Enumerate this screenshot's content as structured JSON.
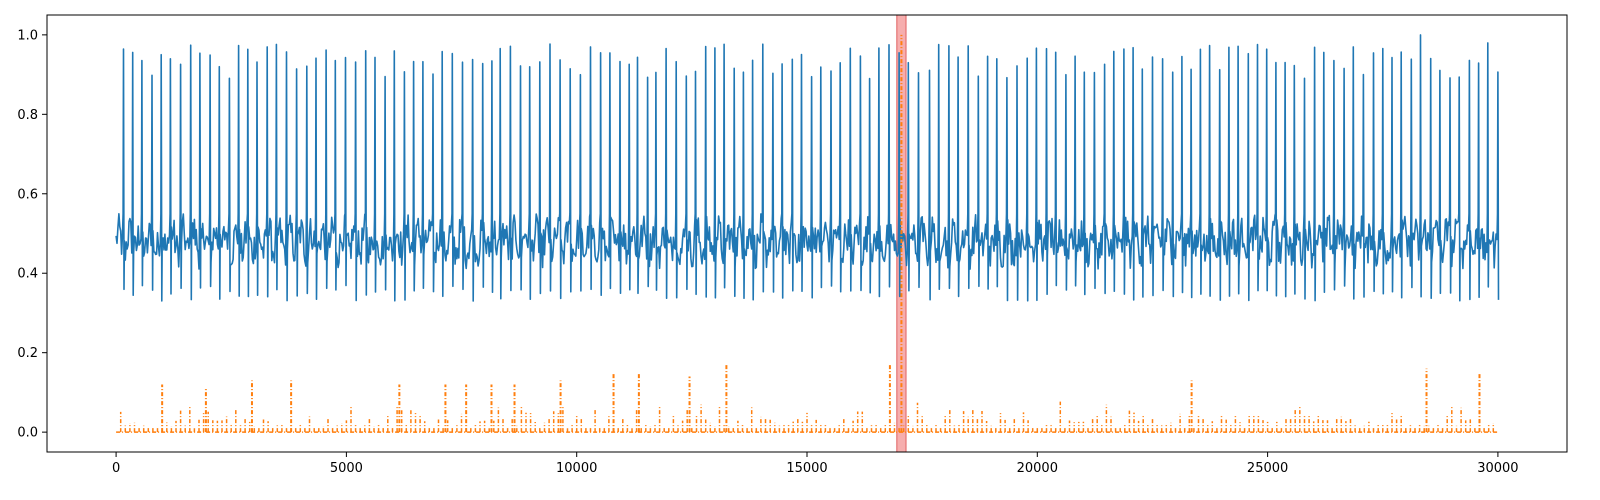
{
  "chart_data": {
    "type": "line",
    "title": "",
    "xlabel": "",
    "ylabel": "",
    "xlim": [
      -1500,
      31500
    ],
    "ylim": [
      -0.05,
      1.05
    ],
    "x_ticks": [
      0,
      5000,
      10000,
      15000,
      20000,
      25000,
      30000
    ],
    "x_tick_labels": [
      "0",
      "5000",
      "10000",
      "15000",
      "20000",
      "25000",
      "30000"
    ],
    "y_ticks": [
      0.0,
      0.2,
      0.4,
      0.6,
      0.8,
      1.0
    ],
    "y_tick_labels": [
      "0.0",
      "0.2",
      "0.4",
      "0.6",
      "0.8",
      "1.0"
    ],
    "grid": false,
    "legend": "none",
    "highlight_region": {
      "x_start": 16950,
      "x_end": 17150,
      "color": "#f4a0a0"
    },
    "series": [
      {
        "style": "solid",
        "color": "#1f77b4",
        "x_range": [
          0,
          30000
        ],
        "baseline": 0.48,
        "noise_band": [
          0.33,
          0.55
        ],
        "peak_interval": 210,
        "peak_values_typical": [
          0.89,
          0.98
        ],
        "max_peak": {
          "x": 28300,
          "y": 1.0
        }
      },
      {
        "style": "dash-dot",
        "color": "#ff7f0e",
        "x_range": [
          0,
          30000
        ],
        "baseline": 0.0,
        "typical_spike_range": [
          0.01,
          0.16
        ],
        "notable_spikes": [
          {
            "x": 1000,
            "y": 0.12
          },
          {
            "x": 1950,
            "y": 0.11
          },
          {
            "x": 2950,
            "y": 0.13
          },
          {
            "x": 3800,
            "y": 0.13
          },
          {
            "x": 6150,
            "y": 0.12
          },
          {
            "x": 7150,
            "y": 0.12
          },
          {
            "x": 7600,
            "y": 0.12
          },
          {
            "x": 8150,
            "y": 0.12
          },
          {
            "x": 8650,
            "y": 0.12
          },
          {
            "x": 9650,
            "y": 0.13
          },
          {
            "x": 10800,
            "y": 0.15
          },
          {
            "x": 11350,
            "y": 0.15
          },
          {
            "x": 12450,
            "y": 0.14
          },
          {
            "x": 13250,
            "y": 0.17
          },
          {
            "x": 16800,
            "y": 0.17
          },
          {
            "x": 17050,
            "y": 1.0
          },
          {
            "x": 23350,
            "y": 0.13
          },
          {
            "x": 28450,
            "y": 0.16
          },
          {
            "x": 29600,
            "y": 0.15
          }
        ]
      }
    ]
  }
}
